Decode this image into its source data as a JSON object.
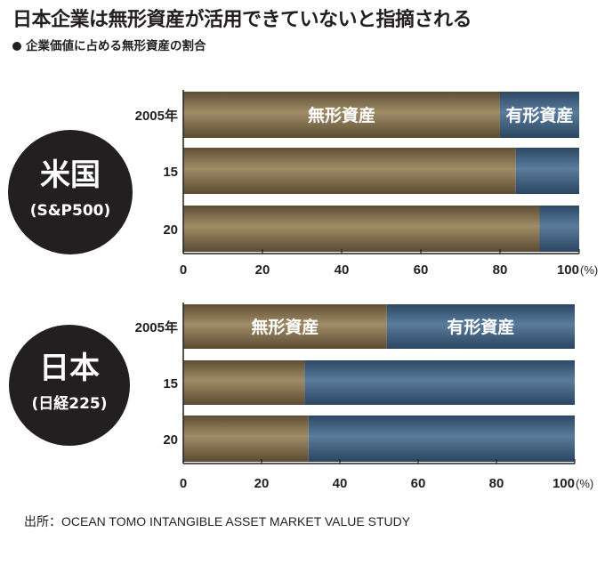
{
  "title": "日本企業は無形資産が活用できていないと指摘される",
  "subtitle": "企業価値に占める無形資産の割合",
  "source": "出所：OCEAN TOMO INTANGIBLE ASSET MARKET VALUE STUDY",
  "colors": {
    "intangible": "#7d6a49",
    "tangible": "#3c5c7c",
    "circle": "#231f20"
  },
  "chart_data": [
    {
      "type": "bar",
      "orientation": "horizontal",
      "stacked": true,
      "region_name": "米国",
      "region_sub": "(S&P500)",
      "categories": [
        "2005年",
        "15",
        "20"
      ],
      "series": [
        {
          "name": "無形資産",
          "values": [
            80,
            84,
            90
          ]
        },
        {
          "name": "有形資産",
          "values": [
            20,
            16,
            10
          ]
        }
      ],
      "xlim": [
        0,
        100
      ],
      "xticks": [
        "0",
        "20",
        "40",
        "60",
        "80",
        "100"
      ],
      "unit": "(%)"
    },
    {
      "type": "bar",
      "orientation": "horizontal",
      "stacked": true,
      "region_name": "日本",
      "region_sub": "(日経225)",
      "categories": [
        "2005年",
        "15",
        "20"
      ],
      "series": [
        {
          "name": "無形資産",
          "values": [
            52,
            31,
            32
          ]
        },
        {
          "name": "有形資産",
          "values": [
            48,
            69,
            68
          ]
        }
      ],
      "xlim": [
        0,
        100
      ],
      "xticks": [
        "0",
        "20",
        "40",
        "60",
        "80",
        "100"
      ],
      "unit": "(%)"
    }
  ]
}
